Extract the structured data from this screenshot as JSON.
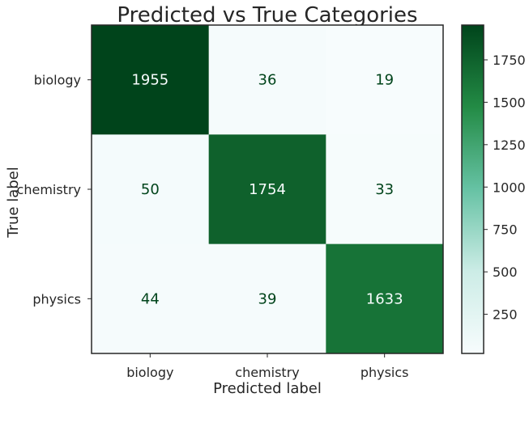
{
  "chart_data": {
    "type": "heatmap",
    "title": "Predicted vs True Categories",
    "xlabel": "Predicted label",
    "ylabel": "True label",
    "x_categories": [
      "biology",
      "chemistry",
      "physics"
    ],
    "y_categories": [
      "biology",
      "chemistry",
      "physics"
    ],
    "matrix": [
      [
        1955,
        36,
        19
      ],
      [
        50,
        1754,
        33
      ],
      [
        44,
        39,
        1633
      ]
    ],
    "colormap": "Greens",
    "colorbar": {
      "min": 19,
      "max": 1955,
      "ticks": [
        250,
        500,
        750,
        1000,
        1250,
        1500,
        1750
      ]
    },
    "grid": false
  }
}
